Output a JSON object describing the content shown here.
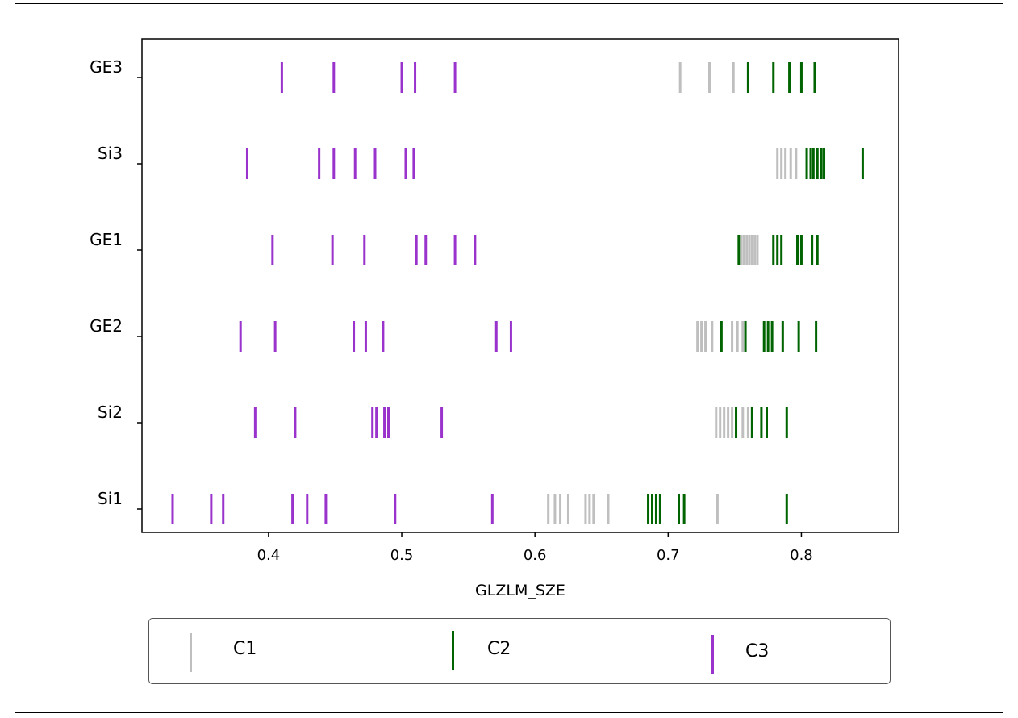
{
  "chart_data": {
    "type": "scatter",
    "title": "",
    "xlabel": "GLZLM_SZE",
    "ylabel": "",
    "xlim": [
      0.305,
      0.873
    ],
    "xticks": [
      "0.4",
      "0.5",
      "0.6",
      "0.7",
      "0.8"
    ],
    "xtick_values": [
      0.4,
      0.5,
      0.6,
      0.7,
      0.8
    ],
    "categories": [
      "Si1",
      "Si2",
      "GE2",
      "GE1",
      "Si3",
      "GE3"
    ],
    "grid": false,
    "legend_placement": "below",
    "series": [
      {
        "name": "C1",
        "color": "#bfbfbf",
        "points": {
          "GE3": [
            0.709,
            0.731,
            0.749
          ],
          "Si3": [
            0.782,
            0.785,
            0.788,
            0.792,
            0.796
          ],
          "GE1": [
            0.755,
            0.757,
            0.759,
            0.761,
            0.763,
            0.765,
            0.767
          ],
          "GE2": [
            0.722,
            0.725,
            0.728,
            0.733,
            0.748,
            0.752,
            0.756
          ],
          "Si2": [
            0.736,
            0.739,
            0.742,
            0.745,
            0.748,
            0.756,
            0.76
          ],
          "Si1": [
            0.61,
            0.615,
            0.619,
            0.625,
            0.638,
            0.641,
            0.644,
            0.655,
            0.737
          ]
        }
      },
      {
        "name": "C2",
        "color": "#006400",
        "points": {
          "GE3": [
            0.76,
            0.779,
            0.791,
            0.8,
            0.81
          ],
          "Si3": [
            0.804,
            0.807,
            0.809,
            0.812,
            0.815,
            0.817,
            0.846
          ],
          "GE1": [
            0.753,
            0.779,
            0.782,
            0.785,
            0.797,
            0.8,
            0.808,
            0.812
          ],
          "GE2": [
            0.74,
            0.758,
            0.772,
            0.775,
            0.778,
            0.786,
            0.798,
            0.811
          ],
          "Si2": [
            0.751,
            0.763,
            0.77,
            0.774,
            0.789
          ],
          "Si1": [
            0.685,
            0.688,
            0.691,
            0.694,
            0.708,
            0.712,
            0.789
          ]
        }
      },
      {
        "name": "C3",
        "color": "#9933cc",
        "points": {
          "GE3": [
            0.41,
            0.449,
            0.5,
            0.51,
            0.54
          ],
          "Si3": [
            0.384,
            0.438,
            0.449,
            0.465,
            0.48,
            0.503,
            0.509
          ],
          "GE1": [
            0.403,
            0.448,
            0.472,
            0.511,
            0.518,
            0.54,
            0.555
          ],
          "GE2": [
            0.379,
            0.405,
            0.464,
            0.473,
            0.486,
            0.571,
            0.582
          ],
          "Si2": [
            0.39,
            0.42,
            0.478,
            0.481,
            0.487,
            0.49,
            0.53
          ],
          "Si1": [
            0.328,
            0.357,
            0.366,
            0.418,
            0.429,
            0.443,
            0.495,
            0.568
          ]
        }
      }
    ]
  },
  "legend": {
    "items": [
      {
        "label": "C1"
      },
      {
        "label": "C2"
      },
      {
        "label": "C3"
      }
    ]
  }
}
